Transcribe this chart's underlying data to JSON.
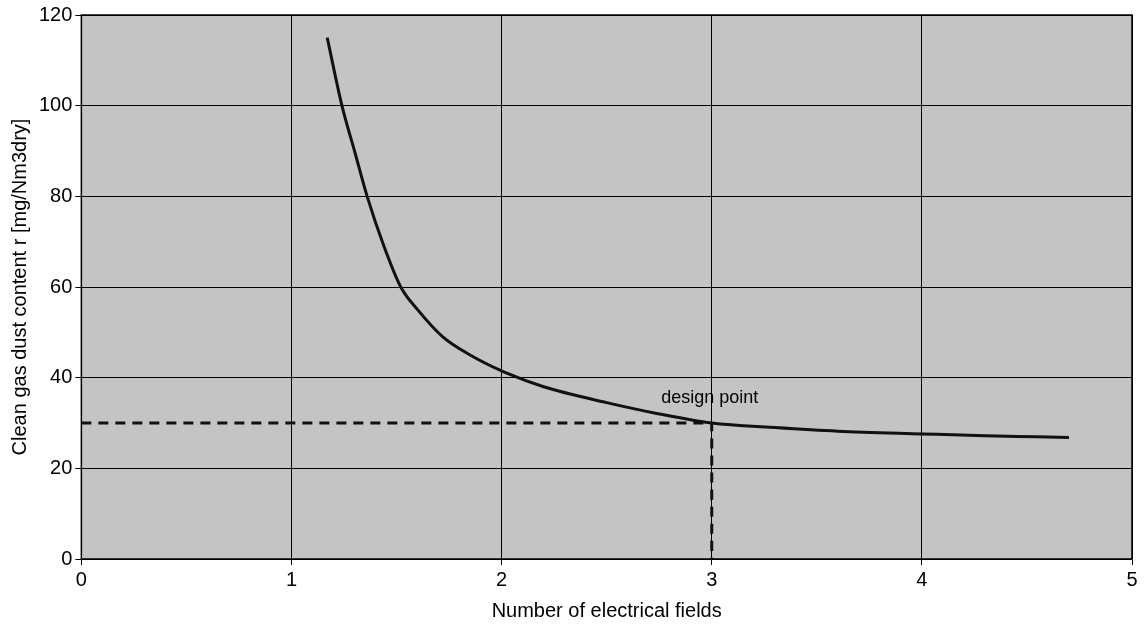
{
  "chart_data": {
    "type": "line",
    "xlabel": "Number of electrical fields",
    "ylabel": "Clean gas dust content r [mg/Nm3dry]",
    "xlim": [
      0,
      5
    ],
    "xticks": [
      0,
      1,
      2,
      3,
      4,
      5
    ],
    "ylim": [
      0,
      120
    ],
    "yticks": [
      0,
      20,
      40,
      60,
      80,
      100,
      120
    ],
    "grid": true,
    "marker": "none",
    "annotations": [
      {
        "text": "design point",
        "x": 3,
        "y": 30
      }
    ],
    "series": [
      {
        "color": "#111111",
        "line_style": "solid",
        "x": [
          1.17,
          1.24,
          1.3,
          1.36,
          1.44,
          1.52,
          1.6,
          1.72,
          1.85,
          2.0,
          2.2,
          2.5,
          2.75,
          3.0,
          3.3,
          3.6,
          4.0,
          4.3,
          4.7
        ],
        "values": [
          115,
          100,
          90,
          80,
          69,
          60,
          55,
          49,
          45,
          41.5,
          38,
          34.5,
          32,
          30,
          29,
          28.2,
          27.6,
          27.2,
          26.8
        ]
      },
      {
        "color": "#111111",
        "line_style": "dashed",
        "x": [
          0,
          3,
          3
        ],
        "values": [
          30,
          30,
          0
        ]
      }
    ]
  }
}
